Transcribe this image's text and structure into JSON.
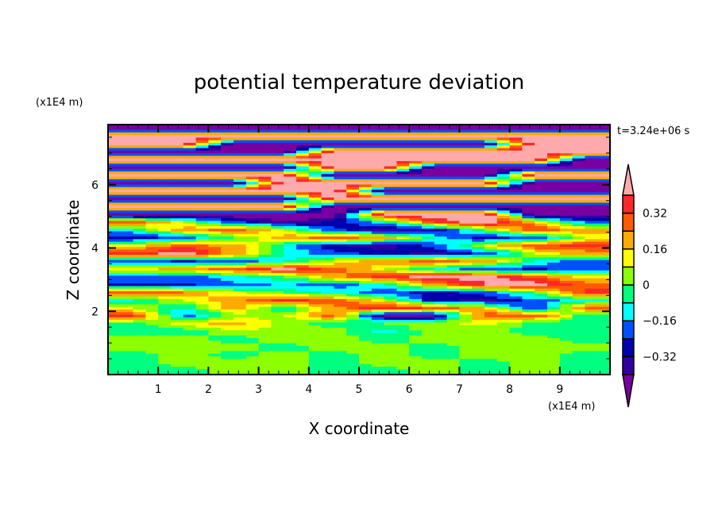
{
  "chart_data": {
    "type": "heatmap",
    "title": "potential temperature deviation",
    "xlabel": "X coordinate",
    "ylabel": "Z coordinate",
    "x_unit": "(x1E4 m)",
    "y_unit": "(x1E4 m)",
    "time_label": "t=3.24e+06 s",
    "xlim": [
      0,
      10
    ],
    "ylim": [
      0,
      7.9
    ],
    "x_ticks": [
      "1",
      "2",
      "3",
      "4",
      "5",
      "6",
      "7",
      "8",
      "9"
    ],
    "y_ticks": [
      "2",
      "4",
      "6"
    ],
    "x_tick_values": [
      1,
      2,
      3,
      4,
      5,
      6,
      7,
      8,
      9
    ],
    "y_tick_values": [
      2,
      4,
      6
    ],
    "levels": [
      -0.4,
      -0.32,
      -0.24,
      -0.16,
      -0.08,
      0,
      0.08,
      0.16,
      0.24,
      0.32,
      0.4
    ],
    "colors": [
      "#7800A0",
      "#3200A0",
      "#0000AA",
      "#0050FF",
      "#00FFFF",
      "#00FF80",
      "#8CFF00",
      "#FFFF00",
      "#FFAA00",
      "#FF5A00",
      "#FF2828",
      "#FFAAAA"
    ],
    "colorbar_labels": [
      {
        "text": "0.32",
        "value": 0.32
      },
      {
        "text": "0.16",
        "value": 0.16
      },
      {
        "text": "0",
        "value": 0
      },
      {
        "text": "−0.16",
        "value": -0.16
      },
      {
        "text": "−0.32",
        "value": -0.32
      }
    ],
    "grid_x_centers": [
      0.5,
      1.5,
      2.5,
      3.5,
      4.5,
      5.5,
      6.5,
      7.5,
      8.5,
      9.5
    ],
    "grid_rows_top_to_bottom": [
      [
        -0.5,
        -0.5,
        -0.5,
        -0.5,
        -0.5,
        -0.5,
        -0.5,
        -0.5,
        -0.5,
        -0.5
      ],
      [
        0.5,
        0.5,
        0.5,
        0.5,
        0.5,
        0.5,
        0.5,
        0.5,
        0.5,
        0.5
      ],
      [
        0.5,
        0.5,
        -0.5,
        -0.5,
        -0.5,
        -0.5,
        -0.5,
        -0.5,
        0.5,
        0.5
      ],
      [
        -0.5,
        -0.5,
        -0.5,
        -0.5,
        0.5,
        0.5,
        0.5,
        0.5,
        0.5,
        0.5
      ],
      [
        0.5,
        0.5,
        0.5,
        0.5,
        0.5,
        0.5,
        0.5,
        0.5,
        0.5,
        -0.5
      ],
      [
        -0.5,
        -0.5,
        -0.5,
        -0.5,
        0.5,
        0.5,
        -0.5,
        -0.5,
        -0.5,
        -0.5
      ],
      [
        0.5,
        0.5,
        0.5,
        0.5,
        -0.5,
        -0.5,
        -0.5,
        -0.5,
        0.5,
        0.5
      ],
      [
        -0.5,
        -0.5,
        -0.5,
        0.5,
        0.5,
        0.5,
        0.5,
        0.5,
        -0.5,
        -0.5
      ],
      [
        0.5,
        0.5,
        0.5,
        0.5,
        0.5,
        -0.5,
        -0.5,
        -0.5,
        -0.5,
        -0.5
      ],
      [
        -0.5,
        -0.5,
        -0.5,
        -0.5,
        0.5,
        0.5,
        0.5,
        0.5,
        0.5,
        0.5
      ],
      [
        0.5,
        0.5,
        0.5,
        0.5,
        -0.5,
        -0.5,
        -0.5,
        -0.5,
        -0.5,
        -0.5
      ],
      [
        -0.5,
        -0.5,
        -0.5,
        -0.5,
        -0.5,
        0.5,
        0.5,
        0.5,
        -0.5,
        -0.5
      ],
      [
        0.3,
        0.1,
        -0.2,
        -0.4,
        -0.3,
        -0.1,
        0.3,
        0.5,
        0.2,
        -0.2
      ],
      [
        -0.1,
        0.2,
        0.3,
        0.1,
        -0.2,
        -0.4,
        -0.3,
        0.0,
        0.3,
        0.2
      ],
      [
        -0.3,
        -0.2,
        0.0,
        0.2,
        0.3,
        0.2,
        -0.1,
        -0.3,
        -0.2,
        0.1
      ],
      [
        0.1,
        0.3,
        0.2,
        -0.1,
        -0.3,
        -0.36,
        -0.2,
        0.1,
        0.3,
        0.35
      ],
      [
        0.35,
        0.45,
        0.2,
        -0.1,
        -0.2,
        -0.3,
        -0.35,
        -0.2,
        0.1,
        0.2
      ],
      [
        -0.2,
        -0.25,
        -0.2,
        -0.1,
        0.1,
        0.2,
        0.3,
        0.2,
        -0.1,
        -0.2
      ],
      [
        0.1,
        0.2,
        0.3,
        0.42,
        0.3,
        0.1,
        -0.1,
        -0.2,
        -0.25,
        -0.2
      ],
      [
        -0.2,
        -0.2,
        -0.1,
        0.0,
        0.2,
        0.35,
        0.45,
        0.45,
        0.3,
        0.1
      ],
      [
        -0.25,
        -0.25,
        -0.2,
        -0.15,
        -0.2,
        -0.1,
        0.2,
        0.4,
        0.45,
        0.3
      ],
      [
        0.3,
        0.25,
        0.1,
        0.0,
        -0.1,
        -0.2,
        -0.3,
        -0.2,
        0.0,
        0.35
      ],
      [
        -0.1,
        0.1,
        0.2,
        0.35,
        0.3,
        0.1,
        -0.3,
        -0.35,
        -0.2,
        -0.1
      ],
      [
        0.1,
        -0.1,
        0.2,
        -0.1,
        0.2,
        0.4,
        0.3,
        0.2,
        -0.3,
        0.3
      ],
      [
        0.35,
        -0.2,
        0.05,
        0.05,
        0.3,
        -0.45,
        -0.4,
        0.3,
        0.3,
        -0.05
      ],
      [
        -0.05,
        0.1,
        0.2,
        0.05,
        -0.05,
        0.0,
        0.05,
        0.1,
        -0.05,
        -0.05
      ],
      [
        -0.05,
        -0.05,
        0.05,
        0.05,
        0.05,
        -0.1,
        0.05,
        0.05,
        -0.05,
        -0.05
      ],
      [
        0.05,
        0.05,
        -0.05,
        0.05,
        0.05,
        -0.05,
        0.05,
        0.05,
        0.05,
        -0.05
      ],
      [
        0.05,
        0.05,
        0.05,
        -0.05,
        0.05,
        0.05,
        -0.05,
        0.05,
        0.05,
        0.05
      ],
      [
        -0.05,
        0.05,
        -0.05,
        0.05,
        -0.05,
        0.05,
        -0.05,
        0.05,
        0.05,
        -0.05
      ],
      [
        -0.05,
        0.05,
        0.05,
        0.05,
        -0.05,
        0.05,
        0.05,
        -0.05,
        0.05,
        -0.05
      ],
      [
        -0.05,
        -0.05,
        0.05,
        0.05,
        -0.05,
        -0.05,
        0.05,
        -0.05,
        0.05,
        -0.05
      ]
    ]
  }
}
